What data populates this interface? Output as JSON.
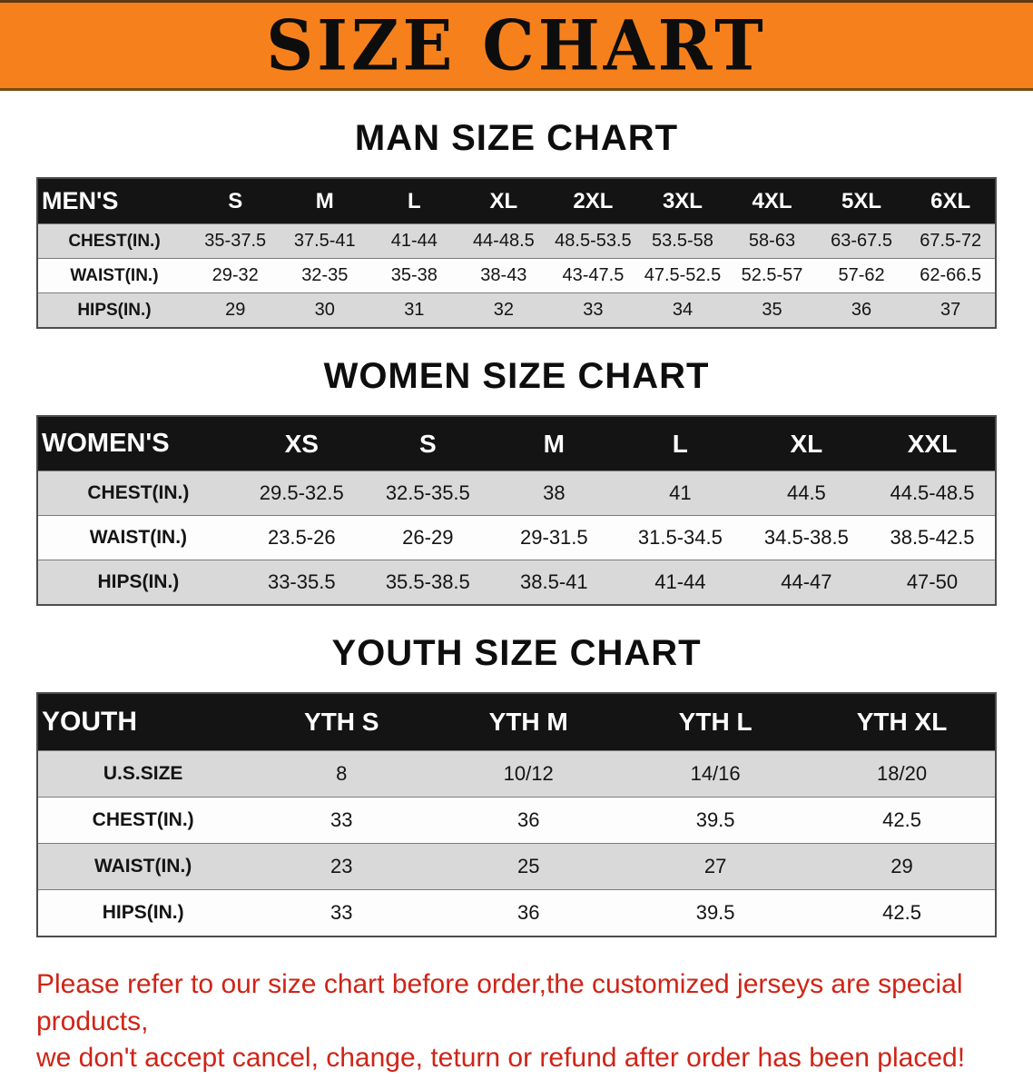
{
  "banner": {
    "title": "SIZE CHART",
    "bg_color": "#f6811c",
    "text_color": "#0d0d0d"
  },
  "sections": [
    {
      "id": "men",
      "heading": "MAN SIZE CHART",
      "table": {
        "header": [
          "MEN'S",
          "S",
          "M",
          "L",
          "XL",
          "2XL",
          "3XL",
          "4XL",
          "5XL",
          "6XL"
        ],
        "rows": [
          [
            "CHEST(IN.)",
            "35-37.5",
            "37.5-41",
            "41-44",
            "44-48.5",
            "48.5-53.5",
            "53.5-58",
            "58-63",
            "63-67.5",
            "67.5-72"
          ],
          [
            "WAIST(IN.)",
            "29-32",
            "32-35",
            "35-38",
            "38-43",
            "43-47.5",
            "47.5-52.5",
            "52.5-57",
            "57-62",
            "62-66.5"
          ],
          [
            "HIPS(IN.)",
            "29",
            "30",
            "31",
            "32",
            "33",
            "34",
            "35",
            "36",
            "37"
          ]
        ]
      }
    },
    {
      "id": "women",
      "heading": "WOMEN SIZE CHART",
      "table": {
        "header": [
          "WOMEN'S",
          "XS",
          "S",
          "M",
          "L",
          "XL",
          "XXL"
        ],
        "rows": [
          [
            "CHEST(IN.)",
            "29.5-32.5",
            "32.5-35.5",
            "38",
            "41",
            "44.5",
            "44.5-48.5"
          ],
          [
            "WAIST(IN.)",
            "23.5-26",
            "26-29",
            "29-31.5",
            "31.5-34.5",
            "34.5-38.5",
            "38.5-42.5"
          ],
          [
            "HIPS(IN.)",
            "33-35.5",
            "35.5-38.5",
            "38.5-41",
            "41-44",
            "44-47",
            "47-50"
          ]
        ]
      }
    },
    {
      "id": "youth",
      "heading": "YOUTH SIZE CHART",
      "table": {
        "header": [
          "YOUTH",
          "YTH S",
          "YTH M",
          "YTH L",
          "YTH XL"
        ],
        "rows": [
          [
            "U.S.SIZE",
            "8",
            "10/12",
            "14/16",
            "18/20"
          ],
          [
            "CHEST(IN.)",
            "33",
            "36",
            "39.5",
            "42.5"
          ],
          [
            "WAIST(IN.)",
            "23",
            "25",
            "27",
            "29"
          ],
          [
            "HIPS(IN.)",
            "33",
            "36",
            "39.5",
            "42.5"
          ]
        ]
      }
    }
  ],
  "note": {
    "color": "#cf2417",
    "lines": [
      "Please refer to our size chart before order,the customized jerseys are special products,",
      "we don't accept cancel, change, teturn or refund after order has been placed!"
    ]
  }
}
